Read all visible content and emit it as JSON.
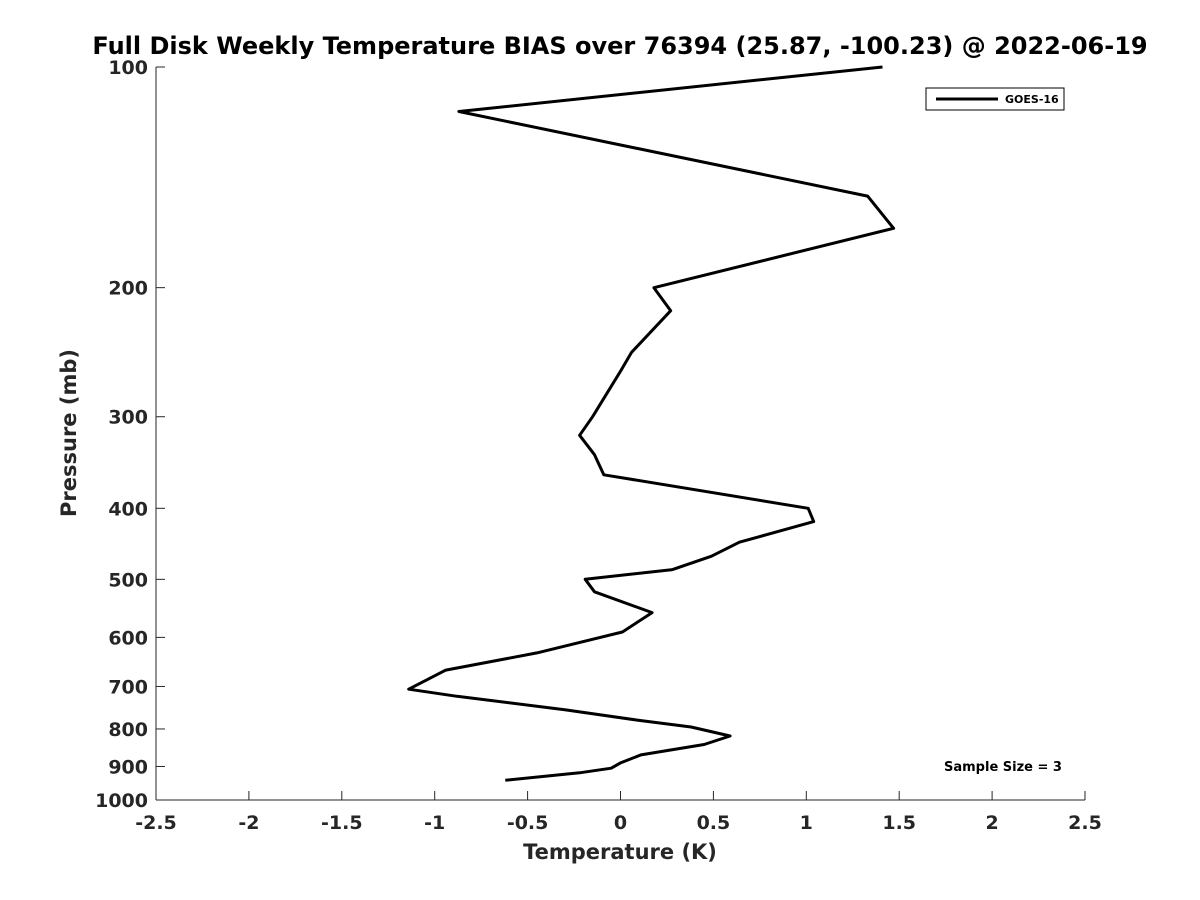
{
  "chart_data": {
    "type": "line",
    "title": "Full Disk Weekly Temperature BIAS over 76394 (25.87, -100.23) @ 2022-06-19",
    "xlabel": "Temperature (K)",
    "ylabel": "Pressure (mb)",
    "xlim": [
      -2.5,
      2.5
    ],
    "ylim": [
      100,
      1000
    ],
    "y_scale": "log",
    "y_reversed": true,
    "x_ticks": [
      "-2.5",
      "-2",
      "-1.5",
      "-1",
      "-0.5",
      "0",
      "0.5",
      "1",
      "1.5",
      "2",
      "2.5"
    ],
    "y_ticks": [
      "100",
      "200",
      "300",
      "400",
      "500",
      "600",
      "700",
      "800",
      "900",
      "1000"
    ],
    "grid": false,
    "legend_position": "top-right",
    "annotation": "Sample Size = 3",
    "series": [
      {
        "name": "GOES-16",
        "color": "#000000",
        "points": [
          [
            1.41,
            100
          ],
          [
            -0.87,
            115
          ],
          [
            1.33,
            150
          ],
          [
            1.47,
            166
          ],
          [
            0.18,
            200
          ],
          [
            0.27,
            215
          ],
          [
            0.06,
            245
          ],
          [
            0.0,
            260
          ],
          [
            -0.15,
            300
          ],
          [
            -0.22,
            318
          ],
          [
            -0.14,
            338
          ],
          [
            -0.09,
            360
          ],
          [
            1.01,
            400
          ],
          [
            1.04,
            417
          ],
          [
            0.64,
            445
          ],
          [
            0.49,
            465
          ],
          [
            0.28,
            485
          ],
          [
            -0.19,
            500
          ],
          [
            -0.14,
            520
          ],
          [
            0.17,
            555
          ],
          [
            0.01,
            590
          ],
          [
            -0.45,
            630
          ],
          [
            -0.94,
            665
          ],
          [
            -1.14,
            706
          ],
          [
            -0.88,
            722
          ],
          [
            -0.3,
            753
          ],
          [
            0.09,
            778
          ],
          [
            0.38,
            795
          ],
          [
            0.59,
            818
          ],
          [
            0.45,
            840
          ],
          [
            0.11,
            868
          ],
          [
            0.0,
            890
          ],
          [
            -0.05,
            905
          ],
          [
            -0.22,
            918
          ],
          [
            -0.62,
            940
          ]
        ]
      }
    ]
  }
}
